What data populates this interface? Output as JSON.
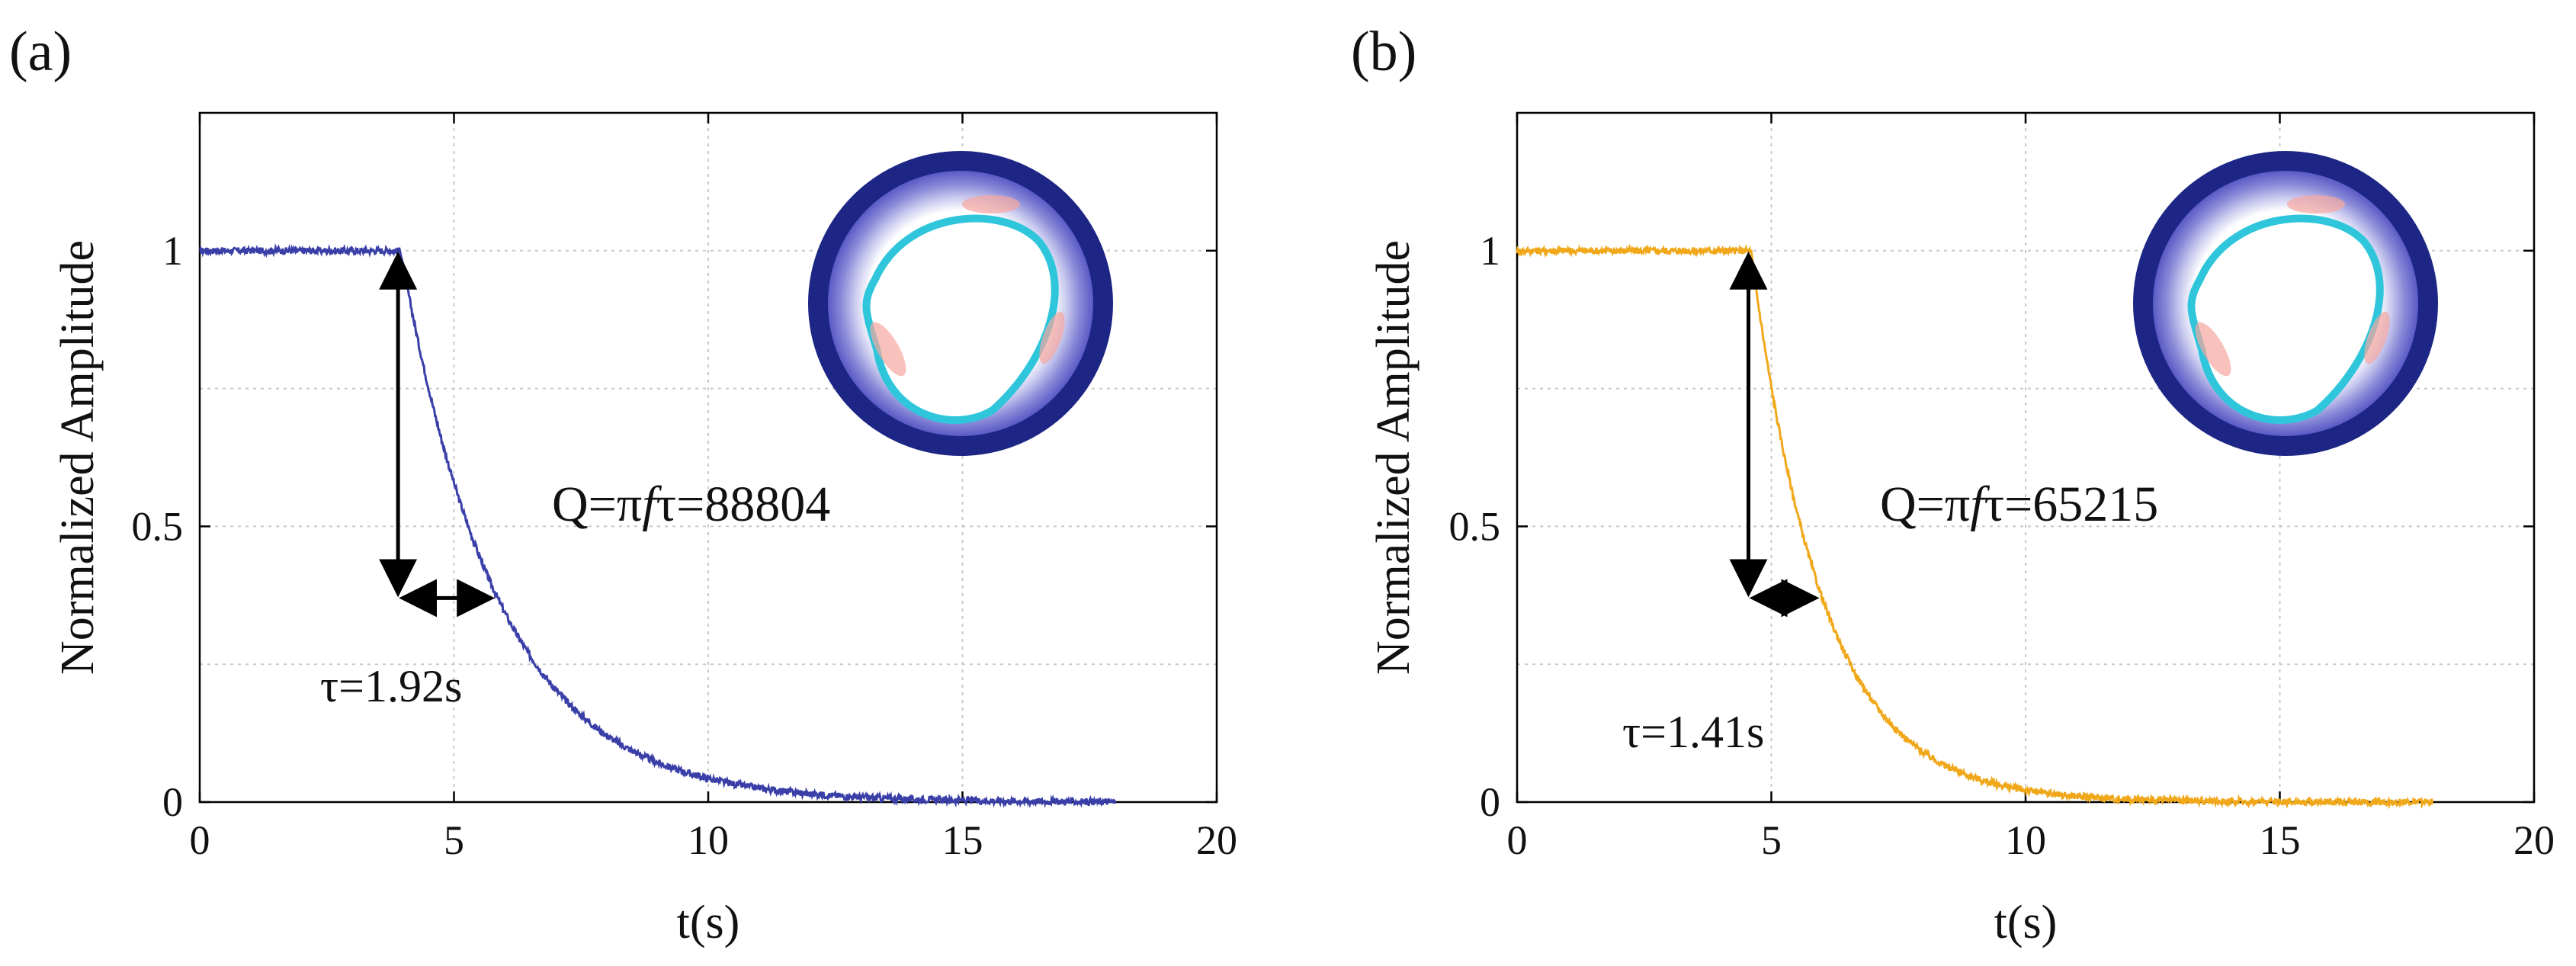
{
  "chart_data": [
    {
      "panel_label": "(a)",
      "type": "line",
      "xlabel": "t(s)",
      "ylabel": "Normalized Amplitude",
      "xlim": [
        0,
        20
      ],
      "ylim": [
        0,
        1.25
      ],
      "xticks": [
        0,
        5,
        10,
        15,
        20
      ],
      "xtick_labels": [
        "0",
        "5",
        "10",
        "15",
        "20"
      ],
      "yticks": [
        0,
        0.5,
        1
      ],
      "ytick_labels": [
        "0",
        "0.5",
        "1"
      ],
      "grid": true,
      "series": [
        {
          "name": "ring-down",
          "color": "#3a3fa8",
          "t0": 3.95,
          "tau": 1.92,
          "t_end": 18
        }
      ],
      "annotations": {
        "q_prefix": "Q=π",
        "q_f": "f",
        "q_suffix": "τ=88804",
        "tau_label": "τ=1.92s"
      },
      "arrow_vertical": {
        "x": 3.9,
        "y_top": 1.0,
        "y_bottom": 0.37
      },
      "arrow_horizontal": {
        "x_start": 3.9,
        "x_end": 5.82,
        "y": 0.37
      },
      "inset": "ring-resonator-mode-3"
    },
    {
      "panel_label": "(b)",
      "type": "line",
      "xlabel": "t(s)",
      "ylabel": "Normalized Amplitude",
      "xlim": [
        0,
        20
      ],
      "ylim": [
        0,
        1.25
      ],
      "xticks": [
        0,
        5,
        10,
        15,
        20
      ],
      "xtick_labels": [
        "0",
        "5",
        "10",
        "15",
        "20"
      ],
      "yticks": [
        0,
        0.5,
        1
      ],
      "ytick_labels": [
        "0",
        "0.5",
        "1"
      ],
      "grid": true,
      "series": [
        {
          "name": "ring-down",
          "color": "#f0a81a",
          "t0": 4.6,
          "tau": 1.41,
          "t_end": 18
        }
      ],
      "annotations": {
        "q_prefix": "Q=π",
        "q_f": "f",
        "q_suffix": "τ=65215",
        "tau_label": "τ=1.41s"
      },
      "arrow_vertical": {
        "x": 4.55,
        "y_top": 1.0,
        "y_bottom": 0.37
      },
      "arrow_horizontal": {
        "x_start": 4.55,
        "x_end": 5.96,
        "y": 0.37
      },
      "inset": "ring-resonator-mode-3"
    }
  ]
}
